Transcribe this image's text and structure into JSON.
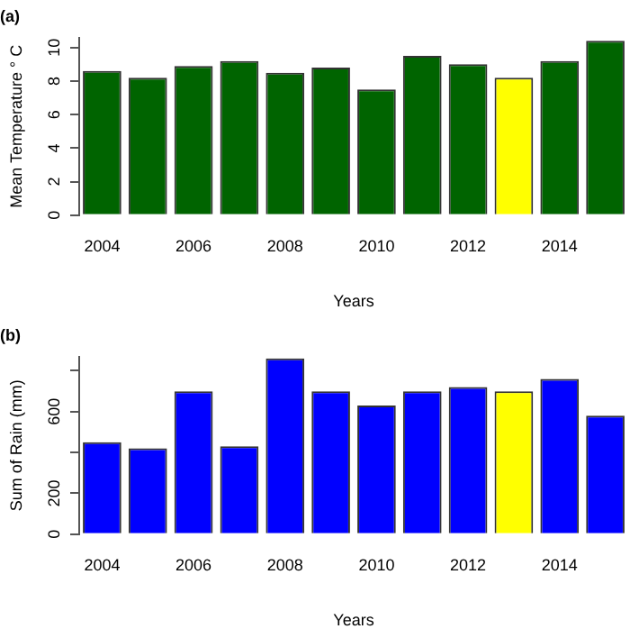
{
  "chart_data": [
    {
      "type": "bar",
      "title": "(a)",
      "xlabel": "Years",
      "ylabel": "Mean Temperature ° C",
      "categories": [
        "2004",
        null,
        "2006",
        null,
        "2008",
        null,
        "2010",
        null,
        "2012",
        null,
        "2014",
        null
      ],
      "values": [
        8.6,
        8.2,
        8.9,
        9.2,
        8.5,
        8.8,
        7.5,
        9.5,
        9.0,
        8.2,
        9.2,
        10.4
      ],
      "colors": [
        "#006400",
        "#006400",
        "#006400",
        "#006400",
        "#006400",
        "#006400",
        "#006400",
        "#006400",
        "#006400",
        "#ffff00",
        "#006400",
        "#006400"
      ],
      "ylim": [
        0,
        10.6
      ],
      "yticks": [
        0,
        2,
        4,
        6,
        8,
        10
      ],
      "grid": false,
      "legend": false
    },
    {
      "type": "bar",
      "title": "(b)",
      "xlabel": "Years",
      "ylabel": "Sum of Rain (mm)",
      "categories": [
        "2004",
        null,
        "2006",
        null,
        "2008",
        null,
        "2010",
        null,
        "2012",
        null,
        "2014",
        null
      ],
      "values": [
        450,
        420,
        700,
        430,
        860,
        700,
        630,
        700,
        720,
        700,
        760,
        580
      ],
      "colors": [
        "#0000ff",
        "#0000ff",
        "#0000ff",
        "#0000ff",
        "#0000ff",
        "#0000ff",
        "#0000ff",
        "#0000ff",
        "#0000ff",
        "#ffff00",
        "#0000ff",
        "#0000ff"
      ],
      "ylim": [
        0,
        870
      ],
      "yticks": [
        0,
        200,
        {
          "value": 400,
          "label": null
        },
        600,
        {
          "value": 800,
          "label": null
        }
      ],
      "grid": false,
      "legend": false
    }
  ]
}
